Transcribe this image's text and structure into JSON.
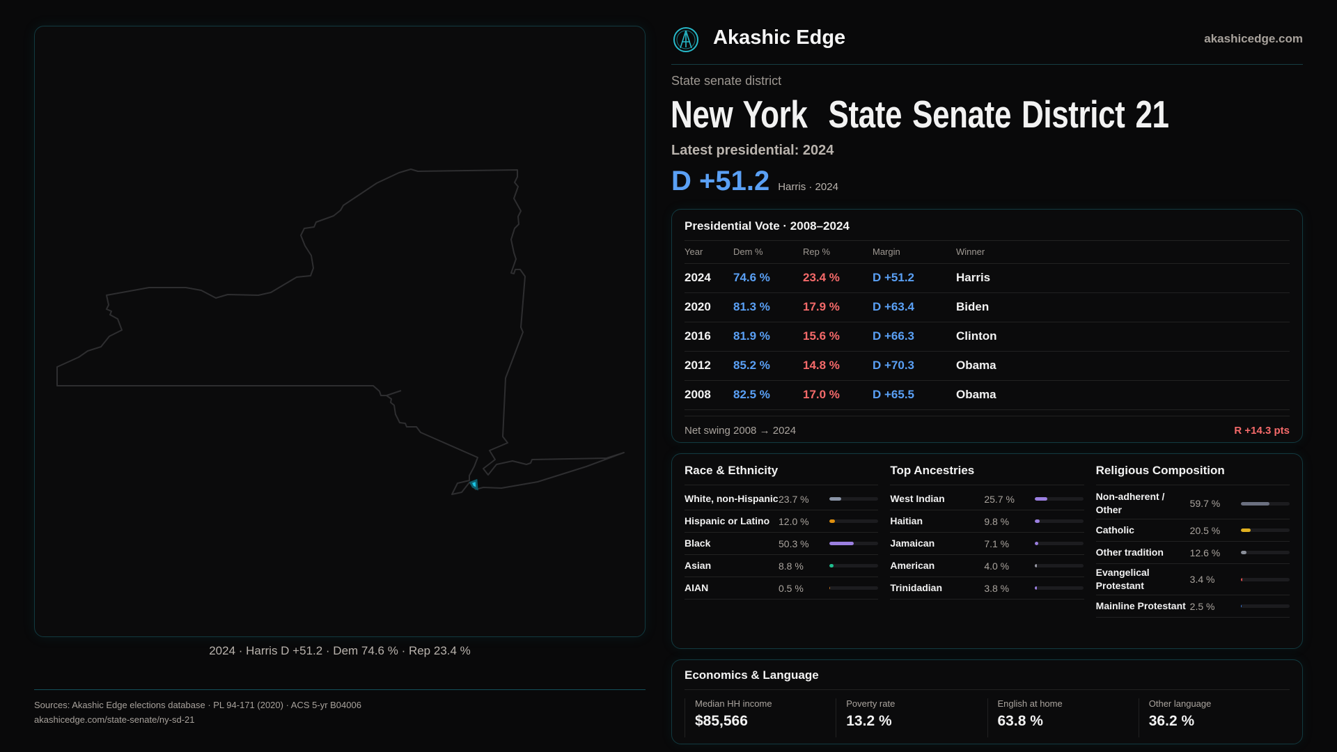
{
  "brand": {
    "name": "Akashic Edge",
    "site": "akashicedge.com"
  },
  "kicker": "State senate district",
  "title": "New York  State Senate District 21",
  "latest": "Latest presidential: 2024",
  "margin_big": "D +51.2",
  "margin_sub": "Harris · 2024",
  "map": {
    "caption": "2024 · Harris D +51.2 · Dem 74.6 % · Rep 23.4 %",
    "highlight_color": "#19c6e6"
  },
  "colors": {
    "dem": "#5aa0f5",
    "rep": "#f56a6a",
    "accent": "#123a40"
  },
  "pres": {
    "title": "Presidential Vote · 2008–2024",
    "headers": [
      "Year",
      "Dem %",
      "Rep %",
      "Margin",
      "Winner"
    ],
    "rows": [
      [
        "2024",
        "74.6 %",
        "23.4 %",
        "D +51.2",
        "Harris"
      ],
      [
        "2020",
        "81.3 %",
        "17.9 %",
        "D +63.4",
        "Biden"
      ],
      [
        "2016",
        "81.9 %",
        "15.6 %",
        "D +66.3",
        "Clinton"
      ],
      [
        "2012",
        "85.2 %",
        "14.8 %",
        "D +70.3",
        "Obama"
      ],
      [
        "2008",
        "82.5 %",
        "17.0 %",
        "D +65.5",
        "Obama"
      ]
    ],
    "swing_label": "Net swing 2008 → 2024",
    "swing_value": "R +14.3 pts"
  },
  "demo": [
    {
      "title": "Race & Ethnicity",
      "items": [
        {
          "label": "White, non-Hispanic",
          "pct": "23.7 %",
          "value": 23.7,
          "color": "#8a94a6"
        },
        {
          "label": "Hispanic or Latino",
          "pct": "12.0 %",
          "value": 12.0,
          "color": "#e0900f"
        },
        {
          "label": "Black",
          "pct": "50.3 %",
          "value": 50.3,
          "color": "#9b7fe0"
        },
        {
          "label": "Asian",
          "pct": "8.8 %",
          "value": 8.8,
          "color": "#1fbf8f"
        },
        {
          "label": "AIAN",
          "pct": "0.5 %",
          "value": 0.5,
          "color": "#c07020"
        }
      ]
    },
    {
      "title": "Top Ancestries",
      "items": [
        {
          "label": "West Indian",
          "pct": "25.7 %",
          "value": 25.7,
          "color": "#9b7fe0"
        },
        {
          "label": "Haitian",
          "pct": "9.8 %",
          "value": 9.8,
          "color": "#9b7fe0"
        },
        {
          "label": "Jamaican",
          "pct": "7.1 %",
          "value": 7.1,
          "color": "#9b7fe0"
        },
        {
          "label": "American",
          "pct": "4.0 %",
          "value": 4.0,
          "color": "#9a9aa6"
        },
        {
          "label": "Trinidadian",
          "pct": "3.8 %",
          "value": 3.8,
          "color": "#9b7fe0"
        }
      ]
    },
    {
      "title": "Religious Composition",
      "items": [
        {
          "label": "Non-adherent / Other",
          "pct": "59.7 %",
          "value": 59.7,
          "color": "#6b7080"
        },
        {
          "label": "Catholic",
          "pct": "20.5 %",
          "value": 20.5,
          "color": "#e0b020"
        },
        {
          "label": "Other tradition",
          "pct": "12.6 %",
          "value": 12.6,
          "color": "#8a8f99"
        },
        {
          "label": "Evangelical Protestant",
          "pct": "3.4 %",
          "value": 3.4,
          "color": "#e05050"
        },
        {
          "label": "Mainline Protestant",
          "pct": "2.5 %",
          "value": 2.5,
          "color": "#3b7ae0"
        }
      ]
    }
  ],
  "econ": {
    "title": "Economics & Language",
    "stats": [
      {
        "label": "Median HH income",
        "value": "$85,566"
      },
      {
        "label": "Poverty rate",
        "value": "13.2 %"
      },
      {
        "label": "English at home",
        "value": "63.8 %"
      },
      {
        "label": "Other language",
        "value": "36.2 %"
      }
    ]
  },
  "footer": {
    "sources": "Sources: Akashic Edge elections database · PL 94-171 (2020) · ACS 5-yr B04006",
    "url": "akashicedge.com/state-senate/ny-sd-21"
  }
}
